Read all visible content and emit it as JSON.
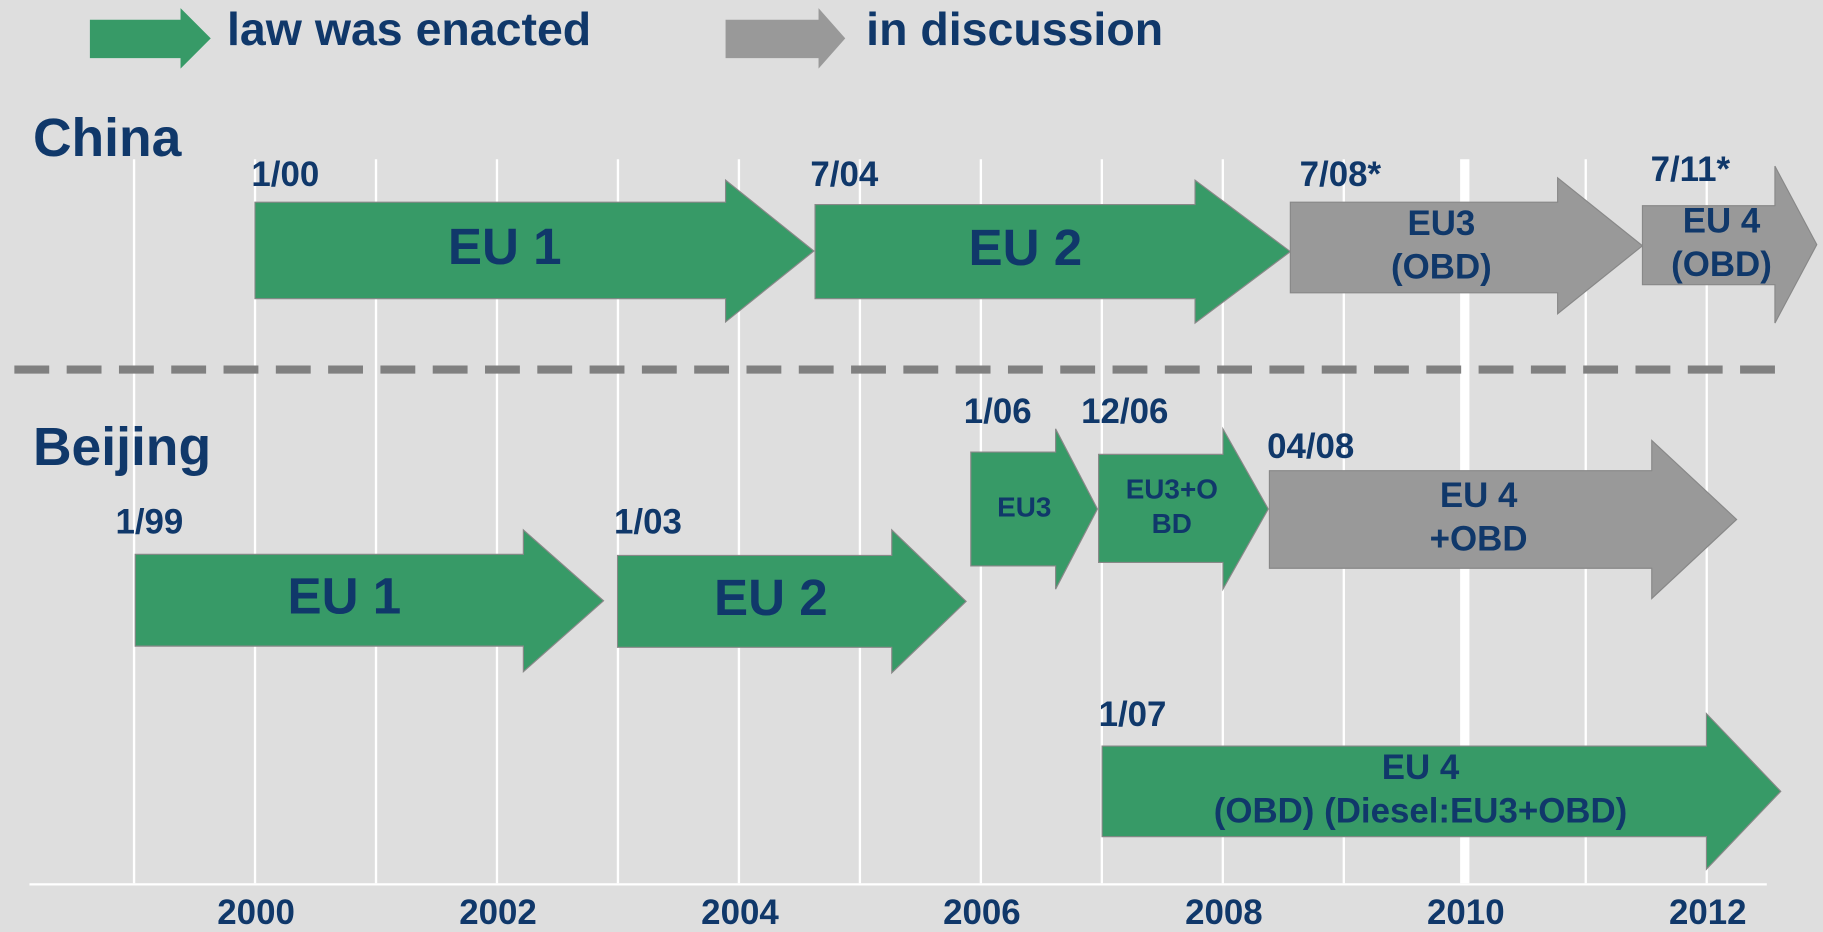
{
  "legend": [
    {
      "label": "law was enacted"
    },
    {
      "label": "in discussion"
    }
  ],
  "regions": [
    {
      "label": "China",
      "arrows": [
        {
          "date": "1/00",
          "lines": [
            "EU 1"
          ]
        },
        {
          "date": "7/04",
          "lines": [
            "EU 2"
          ]
        },
        {
          "date": "7/08*",
          "lines": [
            "EU3",
            "(OBD)"
          ]
        },
        {
          "date": "7/11*",
          "lines": [
            "EU 4",
            "(OBD)"
          ]
        }
      ]
    },
    {
      "label": "Beijing",
      "arrows": [
        {
          "date": "1/99",
          "lines": [
            "EU 1"
          ]
        },
        {
          "date": "1/03",
          "lines": [
            "EU 2"
          ]
        },
        {
          "date": "1/06",
          "lines": [
            "EU3"
          ]
        },
        {
          "date": "12/06",
          "lines": [
            "EU3+O",
            "BD"
          ]
        },
        {
          "date": "04/08",
          "lines": [
            "EU 4",
            "+OBD"
          ]
        },
        {
          "date": "1/07",
          "lines": [
            "EU 4",
            "(OBD) (Diesel:EU3+OBD)"
          ]
        }
      ]
    }
  ],
  "years": [
    "2000",
    "2002",
    "2004",
    "2006",
    "2008",
    "2010",
    "2012"
  ]
}
